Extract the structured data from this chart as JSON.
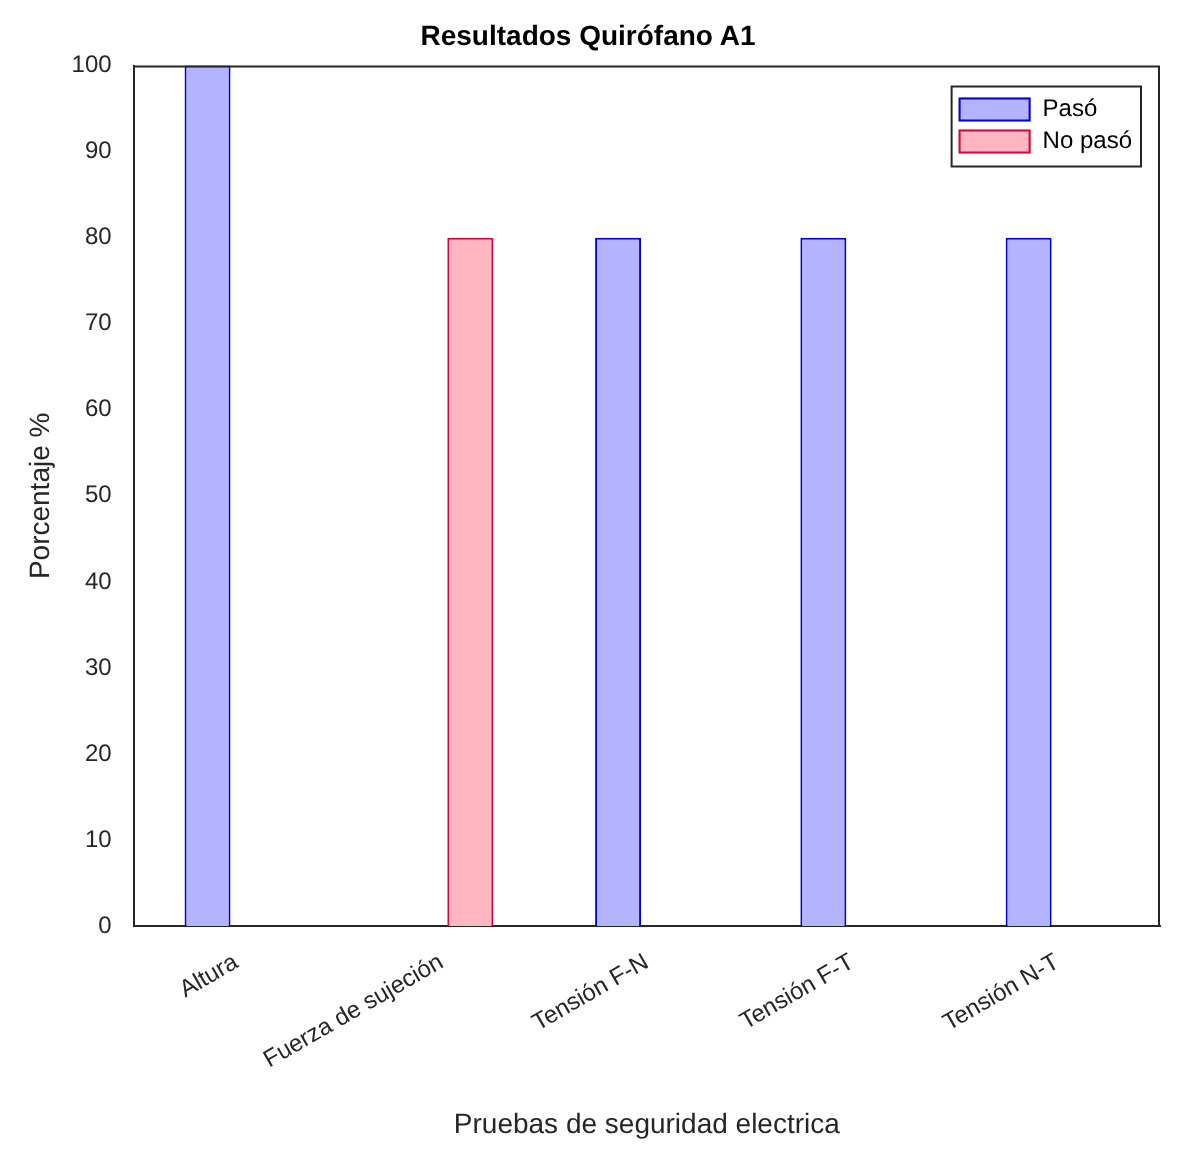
{
  "chart_data": {
    "type": "bar",
    "title": "Resultados Quirófano A1",
    "xlabel": "Pruebas de seguridad electrica",
    "ylabel": "Porcentaje %",
    "categories": [
      "Altura",
      "Fuerza de sujeción",
      "Tensión F-N",
      "Tensión F-T",
      "Tensión N-T"
    ],
    "series": [
      {
        "name": "Pasó",
        "color": "#b3b3ff",
        "values": [
          100,
          0,
          80,
          80,
          80
        ]
      },
      {
        "name": "No pasó",
        "color": "#ffb6c1",
        "values": [
          0,
          80,
          0,
          0,
          0
        ]
      }
    ],
    "ylim": [
      0,
      100
    ],
    "yticks": [
      0,
      10,
      20,
      30,
      40,
      50,
      60,
      70,
      80,
      90,
      100
    ],
    "grid": false,
    "legend": "top right"
  }
}
